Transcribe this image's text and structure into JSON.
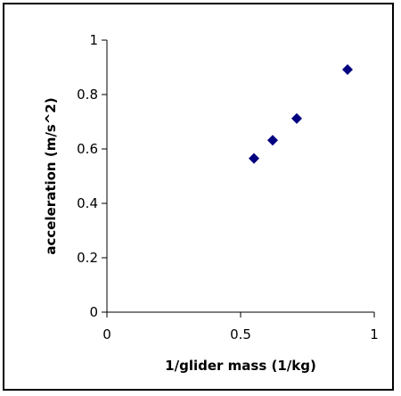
{
  "chart_data": {
    "type": "scatter",
    "title": "",
    "xlabel": "1/glider mass (1/kg)",
    "ylabel": "acceleration (m/s^2)",
    "xlim": [
      0,
      1
    ],
    "ylim": [
      0,
      1
    ],
    "x_ticks": [
      "0",
      "0.5",
      "1"
    ],
    "y_ticks": [
      "0",
      "0.2",
      "0.4",
      "0.6",
      "0.8",
      "1"
    ],
    "grid": false,
    "legend": "none",
    "marker": "diamond",
    "marker_color": "#000080",
    "series": [
      {
        "x": [
          0.55,
          0.62,
          0.71,
          0.9
        ],
        "y": [
          0.565,
          0.632,
          0.712,
          0.892
        ]
      }
    ]
  }
}
